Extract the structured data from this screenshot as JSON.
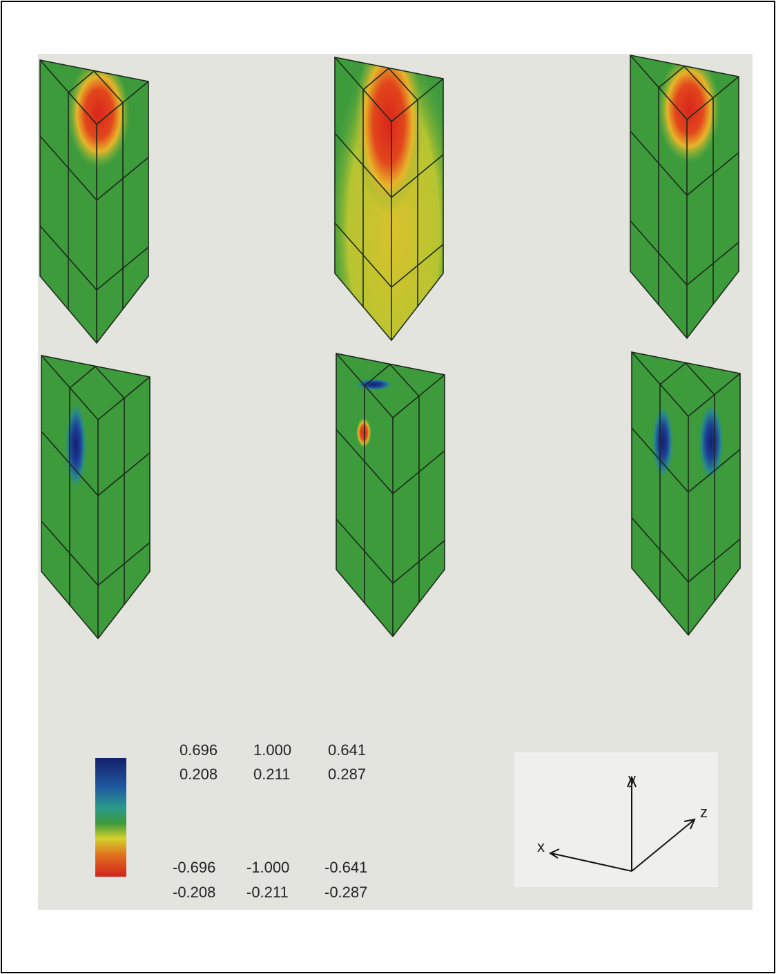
{
  "legend": {
    "max_rows": [
      [
        "0.696",
        "1.000",
        "0.641"
      ],
      [
        "0.208",
        "0.211",
        "0.287"
      ]
    ],
    "min_rows": [
      [
        "-0.696",
        "-1.000",
        "-0.641"
      ],
      [
        "-0.208",
        "-0.211",
        "-0.287"
      ]
    ]
  },
  "axes": {
    "x": "x",
    "y": "y",
    "z": "z"
  }
}
